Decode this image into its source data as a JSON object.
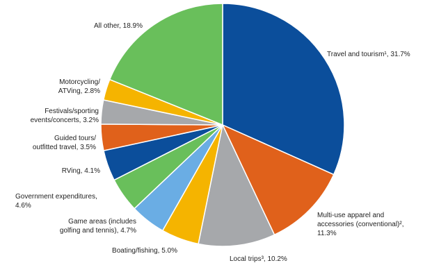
{
  "chart_data": {
    "type": "pie",
    "title": "",
    "slices": [
      {
        "label": "Travel and tourism¹, 31.7%",
        "value": 31.7,
        "color": "#0b4e9b"
      },
      {
        "label": "Multi-use apparel and accessories (conventional)², 11.3%",
        "value": 11.3,
        "color": "#e0611b"
      },
      {
        "label": "Local trips³, 10.2%",
        "value": 10.2,
        "color": "#a6a8ab"
      },
      {
        "label": "Boating/fishing, 5.0%",
        "value": 5.0,
        "color": "#f5b400"
      },
      {
        "label": "Game areas (includes golfing and tennis), 4.7%",
        "value": 4.7,
        "color": "#6aade4"
      },
      {
        "label": "Government expenditures, 4.6%",
        "value": 4.6,
        "color": "#69bf5b"
      },
      {
        "label": "RVing, 4.1%",
        "value": 4.1,
        "color": "#0b4e9b"
      },
      {
        "label": "Guided tours/ outfitted travel, 3.5%",
        "value": 3.5,
        "color": "#e0611b"
      },
      {
        "label": "Festivals/sporting events/concerts, 3.2%",
        "value": 3.2,
        "color": "#a6a8ab"
      },
      {
        "label": "Motorcycling/ ATVing, 2.8%",
        "value": 2.8,
        "color": "#f5b400"
      },
      {
        "label": "All other, 18.9%",
        "value": 18.9,
        "color": "#69bf5b"
      }
    ]
  },
  "labels": {
    "travel": {
      "line1": "Travel and tourism¹, 31.7%"
    },
    "apparel": {
      "line1": "Multi-use apparel and",
      "line2": "accessories (conventional)²,",
      "line3": "11.3%"
    },
    "local": {
      "line1": "Local trips³, 10.2%"
    },
    "boating": {
      "line1": "Boating/fishing, 5.0%"
    },
    "game": {
      "line1": "Game areas (includes",
      "line2": "golfing and tennis), 4.7%"
    },
    "gov": {
      "line1": "Government expenditures,",
      "line2": "4.6%"
    },
    "rving": {
      "line1": "RVing, 4.1%"
    },
    "guided": {
      "line1": "Guided tours/",
      "line2": "outfitted travel, 3.5%"
    },
    "festivals": {
      "line1": "Festivals/sporting",
      "line2": "events/concerts, 3.2%"
    },
    "moto": {
      "line1": "Motorcycling/",
      "line2": "ATVing, 2.8%"
    },
    "other": {
      "line1": "All other, 18.9%"
    }
  }
}
